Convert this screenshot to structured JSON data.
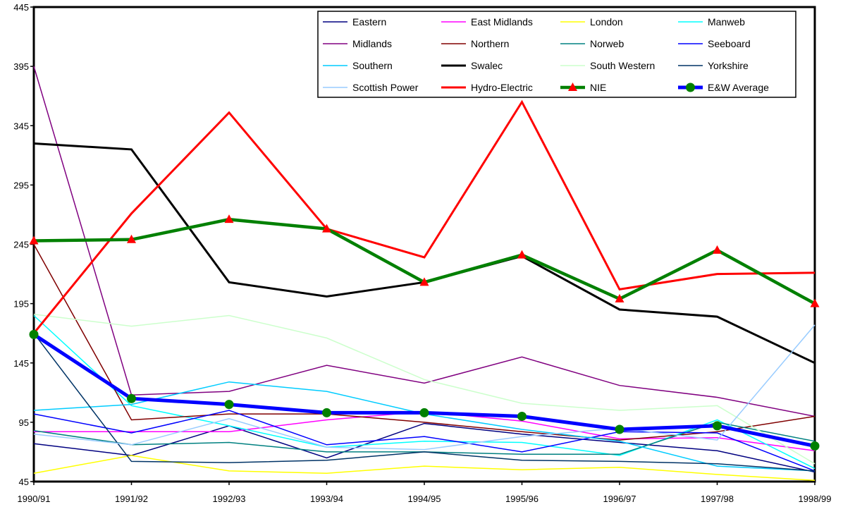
{
  "chart_data": {
    "type": "line",
    "title": "",
    "xlabel": "",
    "ylabel": "",
    "categories": [
      "1990/91",
      "1991/92",
      "1992/93",
      "1993/94",
      "1994/95",
      "1995/96",
      "1996/97",
      "1997/98",
      "1998/99"
    ],
    "ylim": [
      45,
      445
    ],
    "yticks": [
      45,
      95,
      145,
      195,
      245,
      295,
      345,
      395,
      445
    ],
    "ytick_labels": [
      "45",
      "95",
      "145",
      "195",
      "245",
      "295",
      "345",
      "395",
      "445"
    ],
    "grid": false,
    "legend_position": "top-right",
    "series": [
      {
        "name": "Eastern",
        "color": "#000080",
        "width": 1.5,
        "marker": "none",
        "values": [
          77,
          67,
          92,
          65,
          94,
          85,
          78,
          71,
          53
        ]
      },
      {
        "name": "East Midlands",
        "color": "#ff00ff",
        "width": 1.5,
        "marker": "none",
        "values": [
          87,
          87,
          87,
          97,
          104,
          96,
          81,
          82,
          71
        ]
      },
      {
        "name": "London",
        "color": "#ffff00",
        "width": 1.5,
        "marker": "none",
        "values": [
          52,
          67,
          54,
          52,
          58,
          55,
          57,
          51,
          46
        ]
      },
      {
        "name": "Manweb",
        "color": "#00ffff",
        "width": 1.5,
        "marker": "none",
        "values": [
          185,
          109,
          92,
          74,
          79,
          78,
          67,
          97,
          56
        ]
      },
      {
        "name": "Midlands",
        "color": "#800080",
        "width": 1.5,
        "marker": "none",
        "values": [
          395,
          118,
          121,
          143,
          128,
          150,
          126,
          116,
          100
        ]
      },
      {
        "name": "Northern",
        "color": "#800000",
        "width": 1.5,
        "marker": "none",
        "values": [
          245,
          97,
          102,
          102,
          95,
          87,
          80,
          87,
          100
        ]
      },
      {
        "name": "Norweb",
        "color": "#008080",
        "width": 1.5,
        "marker": "none",
        "values": [
          88,
          76,
          78,
          70,
          70,
          68,
          68,
          95,
          79
        ]
      },
      {
        "name": "Seeboard",
        "color": "#0000ff",
        "width": 1.5,
        "marker": "none",
        "values": [
          102,
          86,
          105,
          76,
          83,
          70,
          87,
          86,
          54
        ]
      },
      {
        "name": "Southern",
        "color": "#00ccff",
        "width": 1.5,
        "marker": "none",
        "values": [
          105,
          110,
          129,
          121,
          102,
          89,
          79,
          58,
          54
        ]
      },
      {
        "name": "Swalec",
        "color": "#000000",
        "width": 3,
        "marker": "none",
        "values": [
          330,
          325,
          213,
          201,
          213,
          235,
          190,
          184,
          145
        ]
      },
      {
        "name": "South Western",
        "color": "#ccffcc",
        "width": 1.5,
        "marker": "none",
        "values": [
          186,
          176,
          185,
          166,
          131,
          111,
          105,
          109,
          60
        ]
      },
      {
        "name": "Yorkshire",
        "color": "#003366",
        "width": 1.5,
        "marker": "none",
        "values": [
          170,
          62,
          61,
          63,
          70,
          63,
          62,
          60,
          54
        ]
      },
      {
        "name": "Scottish Power",
        "color": "#99ccff",
        "width": 1.5,
        "marker": "none",
        "values": [
          85,
          76,
          98,
          74,
          72,
          83,
          90,
          80,
          177
        ]
      },
      {
        "name": "Hydro-Electric",
        "color": "#ff0000",
        "width": 3,
        "marker": "none",
        "values": [
          170,
          271,
          356,
          258,
          234,
          365,
          207,
          220,
          221
        ]
      },
      {
        "name": "NIE",
        "color": "#008000",
        "width": 4.5,
        "marker": "triangle",
        "marker_color": "#ff0000",
        "values": [
          248,
          249,
          266,
          258,
          213,
          236,
          199,
          240,
          195
        ]
      },
      {
        "name": "E&W Average",
        "color": "#0000ff",
        "width": 5,
        "marker": "circle",
        "marker_color": "#008000",
        "values": [
          169,
          115,
          110,
          103,
          103,
          100,
          89,
          92,
          75
        ]
      }
    ]
  }
}
